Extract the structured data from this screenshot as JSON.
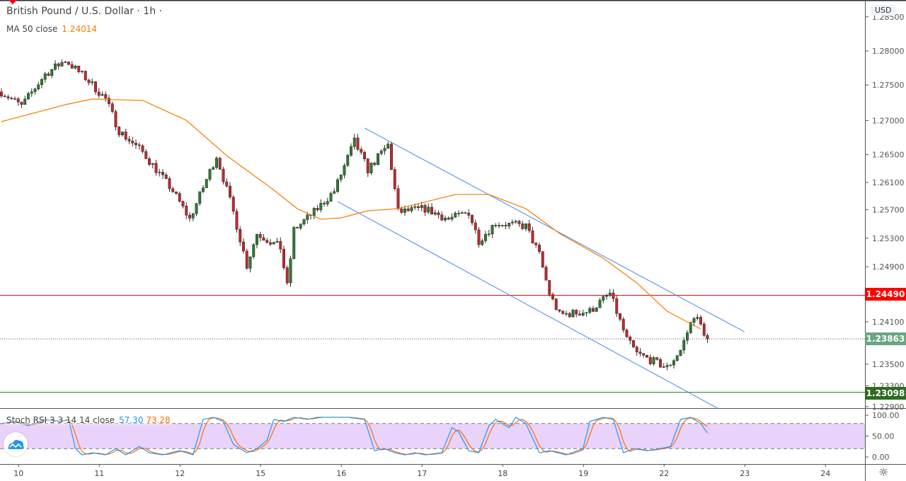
{
  "header": {
    "title": "British Pound / U.S. Dollar · 1h ·",
    "ma_label": "MA 50 close",
    "ma_value": "1.24014",
    "currency": "USD"
  },
  "stoch": {
    "label": "Stoch RSI 3 3 14 14 close",
    "k_value": "57.30",
    "d_value": "73.28",
    "ticks": [
      "100.00",
      "50.00",
      "0.00"
    ]
  },
  "price_axis": {
    "ticks": [
      {
        "label": "1.28500",
        "price": 1.2849
      },
      {
        "label": "1.28000",
        "price": 1.28
      },
      {
        "label": "1.27500",
        "price": 1.2751
      },
      {
        "label": "1.27000",
        "price": 1.27
      },
      {
        "label": "1.26500",
        "price": 1.2651
      },
      {
        "label": "1.26100",
        "price": 1.2611
      },
      {
        "label": "1.25700",
        "price": 1.2572
      },
      {
        "label": "1.25300",
        "price": 1.2531
      },
      {
        "label": "1.24900",
        "price": 1.249
      },
      {
        "label": "1.24100",
        "price": 1.2411
      },
      {
        "label": "1.23500",
        "price": 1.235
      },
      {
        "label": "1.23300",
        "price": 1.2319
      },
      {
        "label": "1.22900",
        "price": 1.2289
      }
    ]
  },
  "time_axis": {
    "labels": [
      {
        "label": "10",
        "hour": 5
      },
      {
        "label": "11",
        "hour": 29
      },
      {
        "label": "12",
        "hour": 53
      },
      {
        "label": "15",
        "hour": 77
      },
      {
        "label": "16",
        "hour": 101
      },
      {
        "label": "17",
        "hour": 125
      },
      {
        "label": "18",
        "hour": 149
      },
      {
        "label": "19",
        "hour": 173
      },
      {
        "label": "22",
        "hour": 197
      },
      {
        "label": "23",
        "hour": 221
      },
      {
        "label": "24",
        "hour": 245
      }
    ]
  },
  "levels": {
    "resistance": {
      "label": "1.24490",
      "price": 1.2449,
      "color": "#ff0000"
    },
    "support": {
      "label": "1.23098",
      "price": 1.23098,
      "color": "#2e7d32"
    },
    "last": {
      "label": "1.23863",
      "price": 1.23863,
      "color": "#6aa584"
    }
  },
  "colors": {
    "up": "#2e7d32",
    "down": "#c62828",
    "ma": "#f57c00",
    "channel": "#4a86e8",
    "k": "#2196f3",
    "d": "#ff6d00",
    "band": "#e1c4fa"
  },
  "chart_data": {
    "type": "candlestick",
    "price_path": [
      [
        0,
        1.27411
      ],
      [
        6,
        1.27208
      ],
      [
        13,
        1.27665
      ],
      [
        19,
        1.27868
      ],
      [
        25,
        1.27614
      ],
      [
        31,
        1.27309
      ],
      [
        35,
        1.26852
      ],
      [
        42,
        1.26547
      ],
      [
        51,
        1.25988
      ],
      [
        56,
        1.25582
      ],
      [
        64,
        1.26496
      ],
      [
        69,
        1.25684
      ],
      [
        73,
        1.24922
      ],
      [
        76,
        1.25379
      ],
      [
        83,
        1.25176
      ],
      [
        85,
        1.24617
      ],
      [
        87,
        1.2543
      ],
      [
        93,
        1.25684
      ],
      [
        99,
        1.25988
      ],
      [
        105,
        1.267
      ],
      [
        109,
        1.26293
      ],
      [
        115,
        1.26649
      ],
      [
        118,
        1.25684
      ],
      [
        126,
        1.25734
      ],
      [
        133,
        1.25582
      ],
      [
        139,
        1.25684
      ],
      [
        142,
        1.25277
      ],
      [
        147,
        1.25531
      ],
      [
        156,
        1.2548
      ],
      [
        160,
        1.25074
      ],
      [
        163,
        1.24515
      ],
      [
        166,
        1.2421
      ],
      [
        175,
        1.24261
      ],
      [
        181,
        1.24515
      ],
      [
        186,
        1.23855
      ],
      [
        189,
        1.23652
      ],
      [
        198,
        1.23448
      ],
      [
        202,
        1.23702
      ],
      [
        206,
        1.2421
      ],
      [
        208,
        1.24058
      ],
      [
        210,
        1.23855
      ]
    ],
    "ma50": [
      [
        0,
        1.26984
      ],
      [
        19,
        1.27228
      ],
      [
        27,
        1.27309
      ],
      [
        42,
        1.27289
      ],
      [
        55,
        1.27004
      ],
      [
        67,
        1.26496
      ],
      [
        80,
        1.26039
      ],
      [
        88,
        1.25734
      ],
      [
        95,
        1.25582
      ],
      [
        101,
        1.25602
      ],
      [
        109,
        1.25704
      ],
      [
        118,
        1.25734
      ],
      [
        135,
        1.25938
      ],
      [
        145,
        1.25938
      ],
      [
        156,
        1.25734
      ],
      [
        166,
        1.25379
      ],
      [
        179,
        1.25023
      ],
      [
        189,
        1.24668
      ],
      [
        198,
        1.24261
      ],
      [
        208,
        1.24007
      ]
    ],
    "channel_upper": [
      [
        108,
        1.26893
      ],
      [
        221,
        1.23966
      ]
    ],
    "channel_lower": [
      [
        100,
        1.25836
      ],
      [
        213,
        1.22869
      ]
    ],
    "stoch_k": [
      [
        0,
        80
      ],
      [
        4,
        85
      ],
      [
        8,
        75
      ],
      [
        13,
        90
      ],
      [
        17,
        85
      ],
      [
        20,
        90
      ],
      [
        22,
        20
      ],
      [
        24,
        5
      ],
      [
        27,
        10
      ],
      [
        31,
        5
      ],
      [
        34,
        20
      ],
      [
        37,
        5
      ],
      [
        41,
        25
      ],
      [
        44,
        10
      ],
      [
        48,
        5
      ],
      [
        53,
        15
      ],
      [
        57,
        5
      ],
      [
        60,
        90
      ],
      [
        63,
        95
      ],
      [
        66,
        85
      ],
      [
        69,
        30
      ],
      [
        73,
        10
      ],
      [
        76,
        20
      ],
      [
        79,
        40
      ],
      [
        81,
        90
      ],
      [
        84,
        85
      ],
      [
        87,
        95
      ],
      [
        91,
        90
      ],
      [
        94,
        95
      ],
      [
        99,
        95
      ],
      [
        103,
        95
      ],
      [
        108,
        90
      ],
      [
        111,
        15
      ],
      [
        114,
        20
      ],
      [
        117,
        10
      ],
      [
        120,
        5
      ],
      [
        123,
        10
      ],
      [
        126,
        5
      ],
      [
        131,
        10
      ],
      [
        134,
        70
      ],
      [
        136,
        60
      ],
      [
        139,
        15
      ],
      [
        142,
        10
      ],
      [
        145,
        75
      ],
      [
        147,
        90
      ],
      [
        151,
        70
      ],
      [
        153,
        95
      ],
      [
        156,
        80
      ],
      [
        160,
        10
      ],
      [
        163,
        15
      ],
      [
        168,
        5
      ],
      [
        173,
        20
      ],
      [
        175,
        85
      ],
      [
        179,
        95
      ],
      [
        182,
        90
      ],
      [
        185,
        10
      ],
      [
        188,
        20
      ],
      [
        192,
        15
      ],
      [
        196,
        20
      ],
      [
        199,
        25
      ],
      [
        202,
        90
      ],
      [
        205,
        95
      ],
      [
        208,
        80
      ],
      [
        210,
        57.3
      ]
    ],
    "stoch_bands": [
      80,
      20
    ]
  }
}
